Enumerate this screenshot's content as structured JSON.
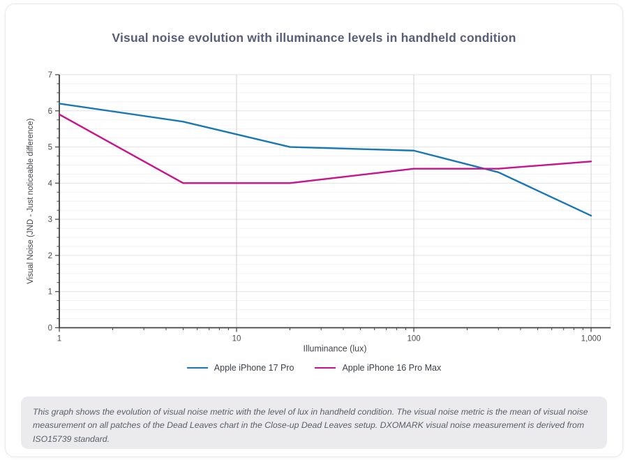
{
  "page": {
    "background": "#ffffff"
  },
  "chart_data": {
    "type": "line",
    "title": "Visual noise evolution with illuminance levels in handheld condition",
    "xlabel": "Illuminance (lux)",
    "ylabel": "Visual Noise (JND - Just noticeable difference)",
    "x_scale": "log",
    "x": [
      1,
      5,
      20,
      100,
      300,
      1000
    ],
    "series": [
      {
        "name": "Apple iPhone 17 Pro",
        "color": "#1878b4",
        "values": [
          6.2,
          5.7,
          5.0,
          4.9,
          4.3,
          3.1
        ]
      },
      {
        "name": "Apple iPhone 16 Pro Max",
        "color": "#c9128c",
        "values": [
          5.9,
          4.0,
          4.0,
          4.4,
          4.4,
          4.6
        ]
      }
    ],
    "xlim": [
      1,
      1288
    ],
    "ylim": [
      0,
      7
    ],
    "x_ticks": [
      {
        "value": 1,
        "label": "1"
      },
      {
        "value": 10,
        "label": "10"
      },
      {
        "value": 100,
        "label": "100"
      },
      {
        "value": 1000,
        "label": "1,000"
      }
    ],
    "y_ticks": [
      "0",
      "1",
      "2",
      "3",
      "4",
      "5",
      "6",
      "7"
    ],
    "y_minor_step": 0.25,
    "grid": true,
    "legend_position": "bottom"
  },
  "footer": {
    "note": "This graph shows the evolution of visual noise metric with the level of lux in handheld condition. The visual noise metric is the mean of visual noise measurement on all patches of the Dead Leaves chart in the Close-up Dead Leaves setup. DXOMARK visual noise measurement is derived from ISO15739 standard."
  },
  "colors": {
    "title_text": "#585d78",
    "axis": "#3f4043",
    "tick_label": "#4a4b4f",
    "grid_major": "#e1e2e5",
    "grid_minor": "#f2f2f4",
    "grid_vertical": "#cfd0d4",
    "note_background": "#ebebee",
    "note_text": "#595e68",
    "card_border": "#e7e8ec"
  }
}
